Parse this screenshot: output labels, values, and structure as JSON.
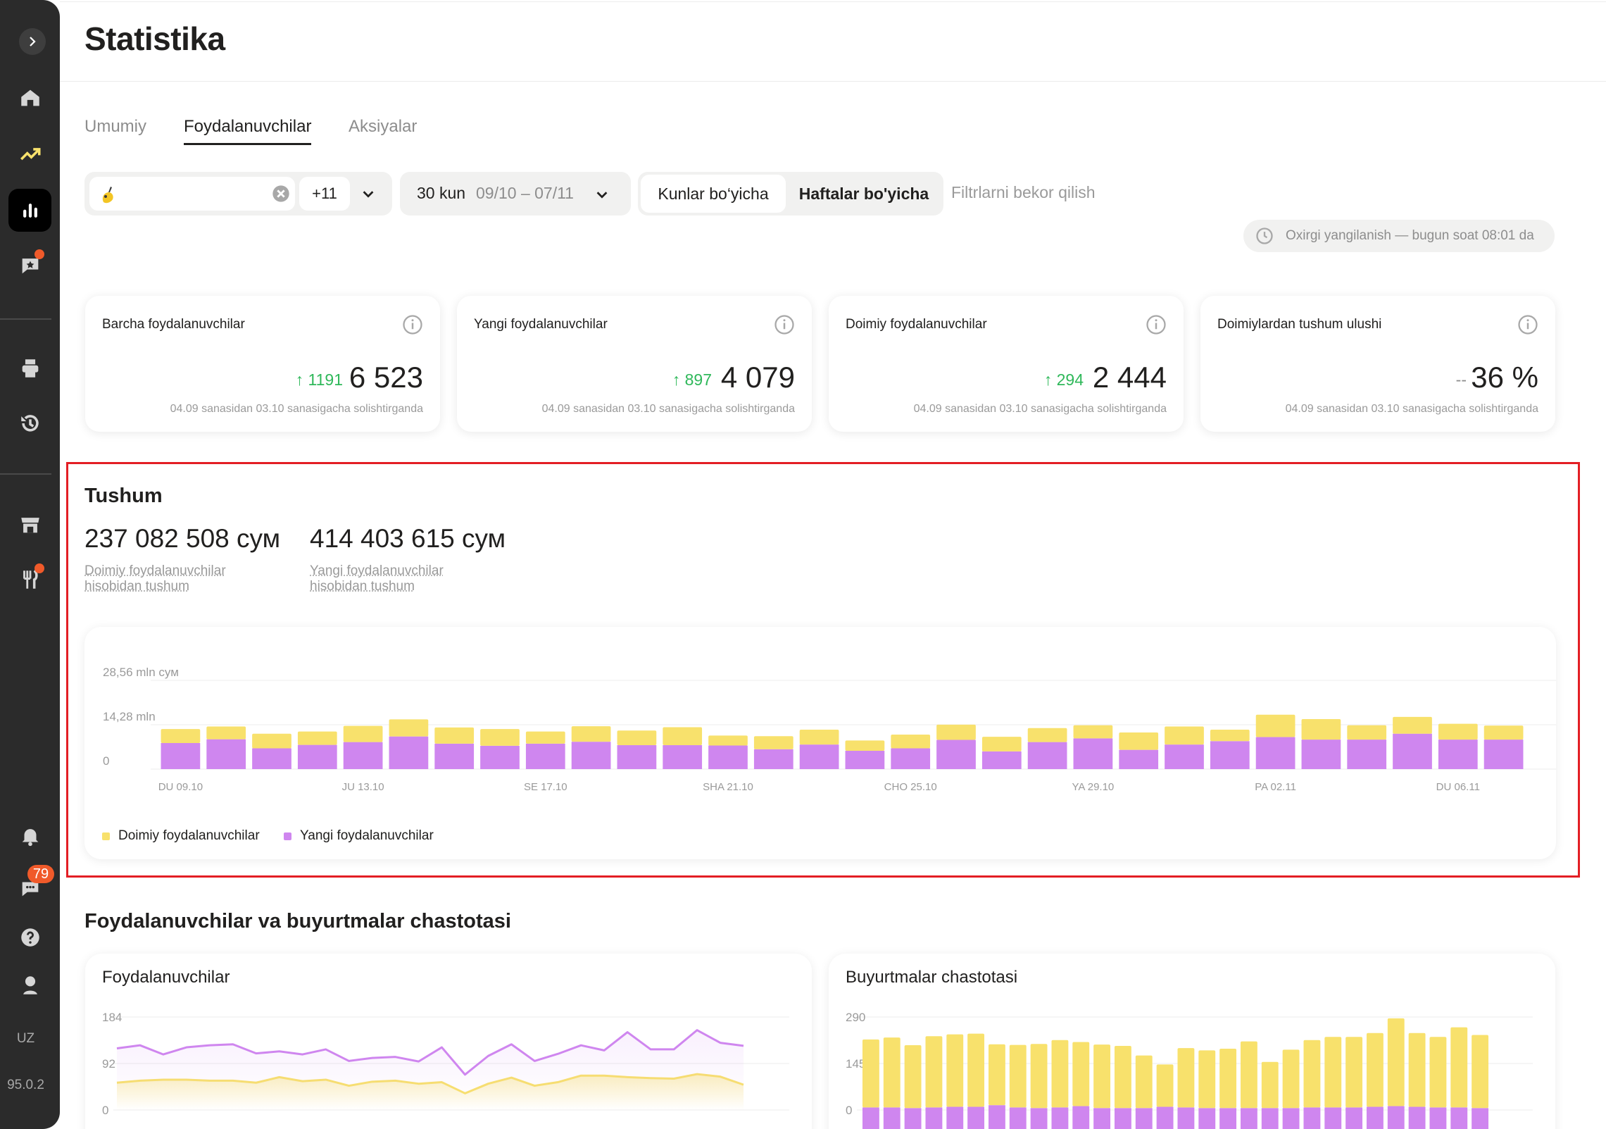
{
  "app": {
    "version": "95.0.2",
    "language": "UZ"
  },
  "sidebar": {
    "items": [
      {
        "name": "home-icon",
        "active": false
      },
      {
        "name": "trend-icon",
        "active": false
      },
      {
        "name": "bar-chart-icon",
        "active": true
      },
      {
        "name": "reviews-icon",
        "active": false,
        "dot": true
      },
      {
        "name": "printer-icon",
        "active": false
      },
      {
        "name": "history-icon",
        "active": false
      },
      {
        "name": "store-icon",
        "active": false
      },
      {
        "name": "restaurant-icon",
        "active": false,
        "dot": true
      },
      {
        "name": "bell-icon",
        "active": false
      },
      {
        "name": "chat-icon",
        "active": false,
        "badge": "79"
      },
      {
        "name": "help-icon",
        "active": false
      },
      {
        "name": "support-icon",
        "active": false
      }
    ],
    "chat_badge": "79"
  },
  "header": {
    "title": "Statistika"
  },
  "tabs": [
    {
      "label": "Umumiy",
      "active": false
    },
    {
      "label": "Foydalanuvchilar",
      "active": true
    },
    {
      "label": "Aksiyalar",
      "active": false
    }
  ],
  "filters": {
    "store_more": "+11",
    "period_label": "30 kun",
    "period_range": "09/10 – 07/11",
    "granularity_days": "Kunlar bo‘yicha",
    "granularity_weeks": "Haftalar bo'yicha",
    "reset": "Filtrlarni bekor qilish",
    "last_update": "Oxirgi yangilanish — bugun soat 08:01 da"
  },
  "kpis": [
    {
      "title": "Barcha foydalanuvchilar",
      "delta": "1191",
      "value": "6 523",
      "note": "04.09 sanasidan 03.10 sanasigacha solishtirganda"
    },
    {
      "title": "Yangi foydalanuvchilar",
      "delta": "897",
      "value": "4 079",
      "note": "04.09 sanasidan 03.10 sanasigacha solishtirganda"
    },
    {
      "title": "Doimiy foydalanuvchilar",
      "delta": "294",
      "value": "2 444",
      "note": "04.09 sanasidan 03.10 sanasigacha solishtirganda"
    },
    {
      "title": "Doimiylardan tushum ulushi",
      "delta": "--",
      "value": "36 %",
      "note": "04.09 sanasidan 03.10 sanasigacha solishtirganda"
    }
  ],
  "revenue": {
    "title": "Tushum",
    "regular_value": "237 082 508 сум",
    "regular_label": "Doimiy foydalanuvchilar hisobidan tushum",
    "new_value": "414 403 615 сум",
    "new_label": "Yangi foydalanuvchilar hisobidan tushum"
  },
  "colors": {
    "regular": "#f8e16c",
    "new": "#cf86ef",
    "positive": "#2fb85a",
    "alert": "#e31e24"
  },
  "chart_data": [
    {
      "type": "bar",
      "stacked": true,
      "title": "Tushum",
      "y_ticks": [
        "0",
        "14,28 mln",
        "28,56 mln сум"
      ],
      "ylim": [
        0,
        28.56
      ],
      "y_unit": "mln сум",
      "x_tick_labels": [
        "DU 09.10",
        "JU 13.10",
        "SE 17.10",
        "SHA 21.10",
        "CHO 25.10",
        "YA 29.10",
        "PA 02.11",
        "DU 06.11"
      ],
      "series": [
        {
          "name": "Yangi foydalanuvchilar",
          "color": "#cf86ef",
          "values": [
            8.4,
            9.6,
            6.7,
            7.8,
            8.7,
            10.5,
            8.2,
            7.5,
            8.2,
            8.8,
            7.7,
            7.7,
            7.6,
            6.4,
            7.9,
            5.9,
            6.7,
            9.4,
            5.7,
            8.7,
            9.9,
            6.2,
            7.9,
            9.0,
            10.3,
            9.5,
            9.5,
            11.4,
            9.5,
            9.5
          ],
          "x": [
            "09.10",
            "10.10",
            "11.10",
            "12.10",
            "13.10",
            "14.10",
            "15.10",
            "16.10",
            "17.10",
            "18.10",
            "19.10",
            "20.10",
            "21.10",
            "22.10",
            "23.10",
            "24.10",
            "25.10",
            "26.10",
            "27.10",
            "28.10",
            "29.10",
            "30.10",
            "31.10",
            "01.11",
            "02.11",
            "03.11",
            "04.11",
            "05.11",
            "06.11",
            "07.11"
          ]
        },
        {
          "name": "Doimiy foydalanuvchilar",
          "color": "#f8e16c",
          "values": [
            4.5,
            4.1,
            4.7,
            4.3,
            5.2,
            5.5,
            5.2,
            5.4,
            3.9,
            5.0,
            4.7,
            5.8,
            3.2,
            4.2,
            4.8,
            3.3,
            4.4,
            4.9,
            4.7,
            4.5,
            4.2,
            5.6,
            5.8,
            3.7,
            7.2,
            6.6,
            4.6,
            5.4,
            5.1,
            4.5
          ],
          "x": [
            "09.10",
            "10.10",
            "11.10",
            "12.10",
            "13.10",
            "14.10",
            "15.10",
            "16.10",
            "17.10",
            "18.10",
            "19.10",
            "20.10",
            "21.10",
            "22.10",
            "23.10",
            "24.10",
            "25.10",
            "26.10",
            "27.10",
            "28.10",
            "29.10",
            "30.10",
            "31.10",
            "01.11",
            "02.11",
            "03.11",
            "04.11",
            "05.11",
            "06.11",
            "07.11"
          ]
        }
      ],
      "legend": [
        "Doimiy foydalanuvchilar",
        "Yangi foydalanuvchilar"
      ],
      "legend_position": "bottom-left",
      "grid": true
    },
    {
      "type": "line",
      "title": "Foydalanuvchilar",
      "y_ticks": [
        "0",
        "92",
        "184"
      ],
      "ylim": [
        0,
        184
      ],
      "series": [
        {
          "color": "#cf86ef",
          "values": [
            122,
            128,
            110,
            124,
            128,
            130,
            112,
            116,
            110,
            120,
            97,
            103,
            105,
            96,
            124,
            70,
            107,
            130,
            97,
            111,
            128,
            118,
            154,
            120,
            120,
            158,
            133,
            127
          ]
        },
        {
          "color": "#f8e16c",
          "values": [
            54,
            58,
            60,
            60,
            58,
            58,
            54,
            65,
            57,
            60,
            48,
            56,
            58,
            52,
            55,
            33,
            52,
            64,
            48,
            55,
            68,
            68,
            65,
            63,
            62,
            71,
            66,
            50
          ]
        }
      ]
    },
    {
      "type": "bar",
      "stacked": true,
      "title": "Buyurtmalar chastotasi",
      "y_ticks": [
        "0",
        "145",
        "290"
      ],
      "ylim": [
        0,
        290
      ],
      "series": [
        {
          "color": "#cf86ef",
          "values": [
            8,
            8,
            6,
            8,
            10,
            10,
            15,
            8,
            6,
            8,
            12,
            6,
            6,
            6,
            10,
            8,
            6,
            6,
            6,
            6,
            6,
            8,
            8,
            8,
            10,
            12,
            10,
            8,
            8,
            6
          ]
        },
        {
          "color": "#f8e16c",
          "values": [
            212,
            218,
            196,
            222,
            226,
            228,
            190,
            195,
            200,
            210,
            200,
            198,
            194,
            164,
            132,
            185,
            180,
            185,
            208,
            144,
            182,
            210,
            220,
            220,
            230,
            274,
            230,
            220,
            250,
            228
          ]
        }
      ]
    }
  ]
}
